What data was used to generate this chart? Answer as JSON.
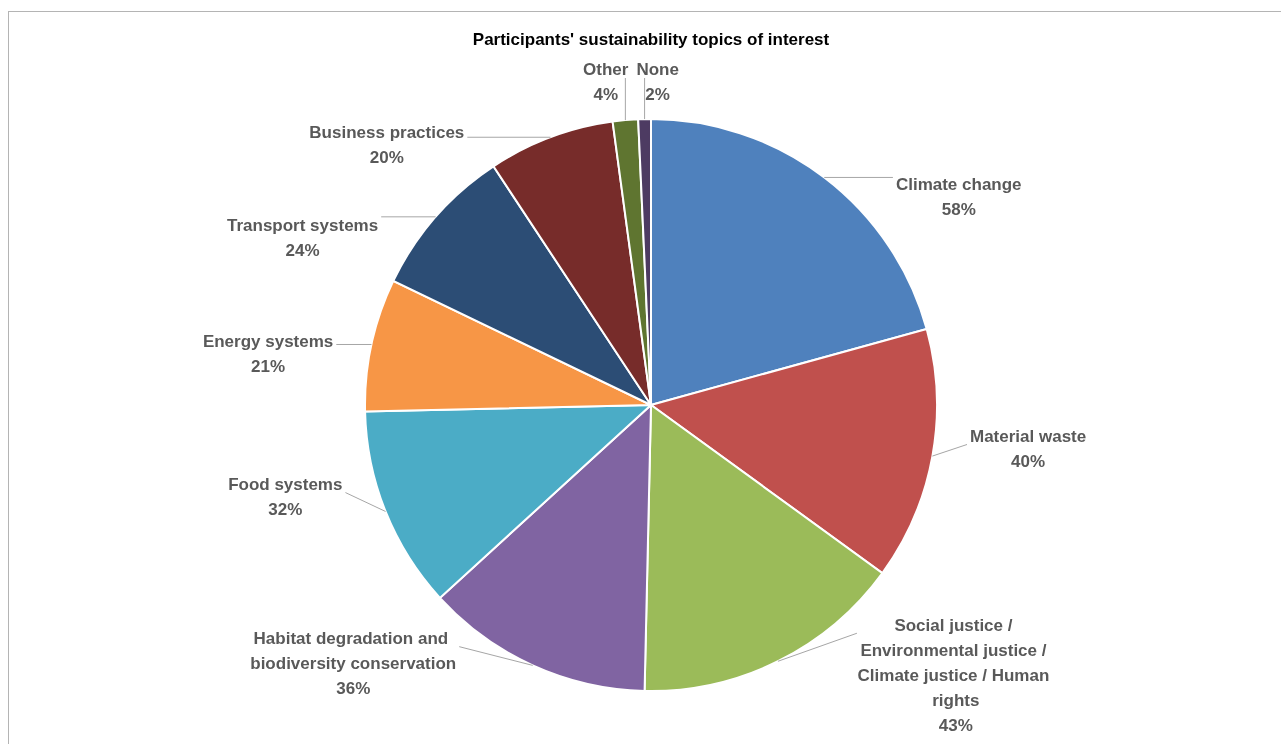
{
  "chart_data": {
    "type": "pie",
    "title": "Participants' sustainability topics of interest",
    "categories": [
      "Climate change",
      "Material waste",
      "Social justice / Environmental justice / Climate justice / Human rights",
      "Habitat degradation and biodiversity conservation",
      "Food systems",
      "Energy systems",
      "Transport systems",
      "Business practices",
      "Other",
      "None"
    ],
    "values": [
      58,
      40,
      43,
      36,
      32,
      21,
      24,
      20,
      4,
      2
    ],
    "value_labels": [
      "58%",
      "40%",
      "43%",
      "36%",
      "32%",
      "21%",
      "24%",
      "20%",
      "4%",
      "2%"
    ],
    "colors": [
      "#4f81bd",
      "#c0504d",
      "#9bbb59",
      "#8064a2",
      "#4bacc6",
      "#f79646",
      "#2c4d75",
      "#772c2a",
      "#5f7530",
      "#4d3b62"
    ]
  }
}
